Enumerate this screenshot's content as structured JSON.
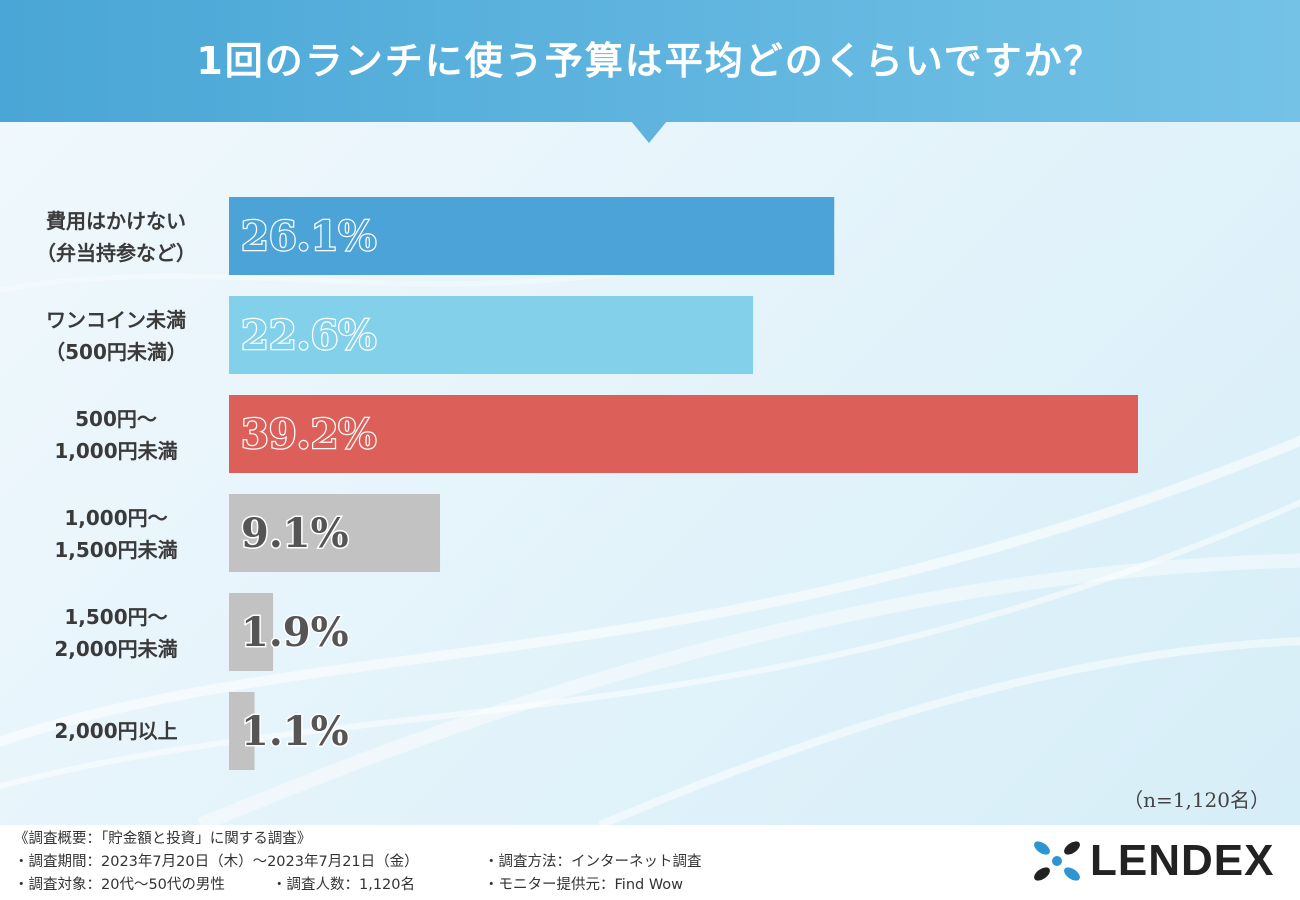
{
  "header": {
    "title": "1回のランチに使う予算は平均どのくらいですか？"
  },
  "sample_note": "（n=1,120名）",
  "chart_data": {
    "type": "bar",
    "orientation": "horizontal",
    "title": "1回のランチに使う予算は平均どのくらいですか？",
    "categories": [
      [
        "費用はかけない",
        "（弁当持参など）"
      ],
      [
        "ワンコイン未満",
        "（500円未満）"
      ],
      [
        "500円～",
        "1,000円未満"
      ],
      [
        "1,000円～",
        "1,500円未満"
      ],
      [
        "1,500円～",
        "2,000円未満"
      ],
      [
        "2,000円以上"
      ]
    ],
    "values": [
      26.1,
      22.6,
      39.2,
      9.1,
      1.9,
      1.1
    ],
    "value_labels": [
      "26.1%",
      "22.6%",
      "39.2%",
      "9.1%",
      "1.9%",
      "1.1%"
    ],
    "unit": "%",
    "xlim": [
      0,
      40
    ],
    "colors": [
      "#4ba3d7",
      "#83d0ea",
      "#dd5f5a",
      "#c2c2c2",
      "#c2c2c2",
      "#c2c2c2"
    ]
  },
  "footer": {
    "summary": "《調査概要：「貯金額と投資」に関する調査》",
    "period": "・調査期間：2023年7月20日（木）～2023年7月21日（金）",
    "method": "・調査方法：インターネット調査",
    "target": "・調査対象：20代～50代の男性",
    "count": "・調査人数：1,120名",
    "provider": "・モニター提供元：Find Wow"
  },
  "logo": {
    "text": "LENDEX",
    "accent": "#2d95cf"
  }
}
